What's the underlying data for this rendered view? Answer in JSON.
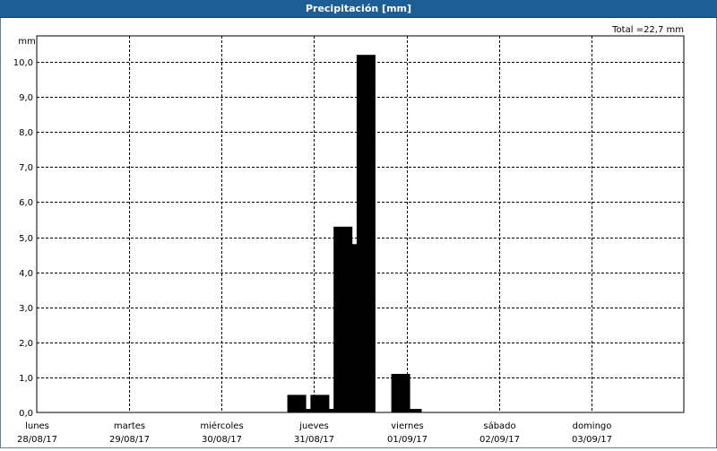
{
  "window": {
    "title": "Precipitación [mm]"
  },
  "chart_data": {
    "type": "bar",
    "title": "Precipitación [mm]",
    "ylabel": "mm",
    "total_label": "Total =22,7 mm",
    "ylim": [
      0,
      11.0
    ],
    "yticks": [
      "0,0",
      "1,0",
      "2,0",
      "3,0",
      "4,0",
      "5,0",
      "6,0",
      "7,0",
      "8,0",
      "9,0",
      "10,0"
    ],
    "x_range_days": [
      0,
      7
    ],
    "day_labels": [
      {
        "day": "lunes",
        "date": "28/08/17"
      },
      {
        "day": "martes",
        "date": "29/08/17"
      },
      {
        "day": "miércoles",
        "date": "30/08/17"
      },
      {
        "day": "jueves",
        "date": "31/08/17"
      },
      {
        "day": "viernes",
        "date": "01/09/17"
      },
      {
        "day": "sábado",
        "date": "02/09/17"
      },
      {
        "day": "domingo",
        "date": "03/09/17"
      }
    ],
    "bars": [
      {
        "x": "2017-08-30 18:00",
        "value": 0.5
      },
      {
        "x": "2017-08-30 21:00",
        "value": 0.1
      },
      {
        "x": "2017-08-31 00:00",
        "value": 0.5
      },
      {
        "x": "2017-08-31 03:00",
        "value": 0.1
      },
      {
        "x": "2017-08-31 06:00",
        "value": 5.3
      },
      {
        "x": "2017-08-31 09:00",
        "value": 4.8
      },
      {
        "x": "2017-08-31 12:00",
        "value": 10.2
      },
      {
        "x": "2017-08-31 21:00",
        "value": 1.1
      },
      {
        "x": "2017-09-01 00:00",
        "value": 0.1
      }
    ],
    "grid": true,
    "bar_color": "#000000"
  }
}
